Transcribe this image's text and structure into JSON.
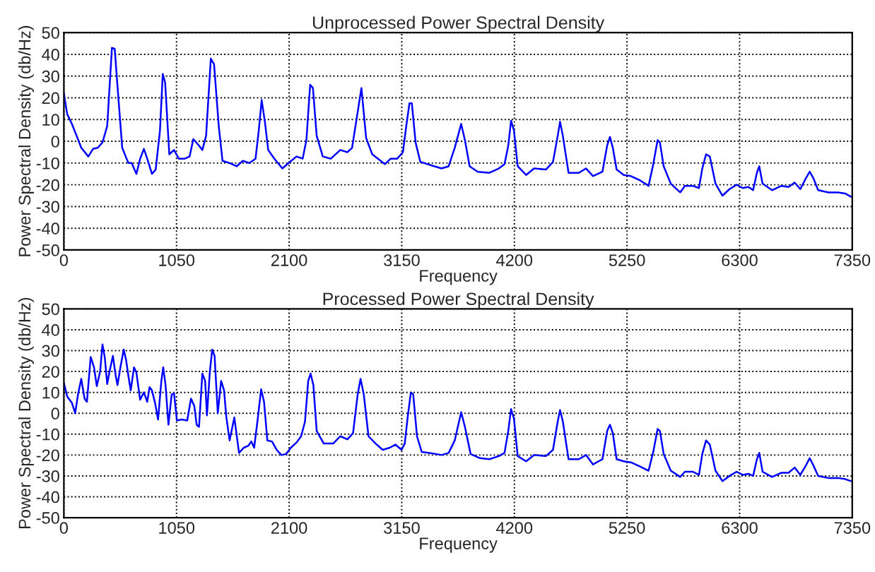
{
  "chart_data": [
    {
      "type": "line",
      "title": "Unprocessed Power Spectral Density",
      "xlabel": "Frequency",
      "ylabel": "Power Spectral Density (db/Hz)",
      "xlim": [
        0,
        7350
      ],
      "xticks": [
        0,
        1050,
        2100,
        3150,
        4200,
        5250,
        6300,
        7350
      ],
      "ylim": [
        -50,
        50
      ],
      "yticks": [
        -50,
        -40,
        -30,
        -20,
        -10,
        0,
        10,
        20,
        30,
        40,
        50
      ],
      "grid": true,
      "line_style": "solid",
      "marker": "none",
      "x": [
        0,
        31,
        75,
        119,
        162,
        228,
        272,
        316,
        360,
        404,
        448,
        474,
        505,
        544,
        601,
        632,
        676,
        711,
        746,
        777,
        821,
        856,
        896,
        922,
        944,
        983,
        1027,
        1071,
        1128,
        1172,
        1207,
        1260,
        1291,
        1326,
        1370,
        1400,
        1444,
        1479,
        1545,
        1611,
        1668,
        1730,
        1787,
        1817,
        1844,
        1874,
        1905,
        1962,
        2037,
        2107,
        2169,
        2226,
        2261,
        2296,
        2322,
        2357,
        2414,
        2489,
        2577,
        2643,
        2687,
        2744,
        2774,
        2818,
        2875,
        2928,
        2994,
        3047,
        3108,
        3161,
        3192,
        3222,
        3244,
        3279,
        3323,
        3389,
        3455,
        3521,
        3587,
        3644,
        3704,
        3739,
        3783,
        3858,
        3967,
        4055,
        4108,
        4143,
        4169,
        4196,
        4231,
        4310,
        4384,
        4494,
        4560,
        4604,
        4626,
        4652,
        4705,
        4801,
        4868,
        4933,
        5021,
        5065,
        5091,
        5118,
        5153,
        5219,
        5285,
        5372,
        5451,
        5495,
        5535,
        5557,
        5592,
        5658,
        5746,
        5790,
        5864,
        5921,
        5952,
        5987,
        6022,
        6075,
        6140,
        6206,
        6272,
        6329,
        6382,
        6426,
        6461,
        6483,
        6514,
        6602,
        6690,
        6756,
        6813,
        6866,
        6918,
        6953,
        6988,
        7032,
        7129,
        7216,
        7282,
        7339
      ],
      "series": [
        {
          "color": "#0000ff",
          "values": [
            22,
            12.5,
            8,
            2.5,
            -3,
            -7,
            -3.5,
            -3,
            -0.5,
            7,
            43,
            42.5,
            22,
            -3,
            -10,
            -10,
            -15,
            -8,
            -3.5,
            -8,
            -15,
            -13,
            5,
            31,
            27,
            -6,
            -4,
            -8,
            -8,
            -7,
            1,
            -2,
            -4,
            2.5,
            38,
            35.5,
            7,
            -9,
            -10,
            -11.5,
            -9,
            -10,
            -8,
            5,
            19,
            9,
            -4,
            -8,
            -12.5,
            -9.5,
            -7,
            -8,
            0.5,
            26,
            24.5,
            2.5,
            -7,
            -8,
            -4,
            -5,
            -3,
            15,
            24.5,
            1.5,
            -6,
            -8,
            -10.5,
            -8,
            -8,
            -5,
            7,
            17.5,
            17.5,
            -0.5,
            -9.5,
            -10.5,
            -11.5,
            -12.5,
            -11.5,
            -3,
            8,
            0.5,
            -11.5,
            -14,
            -14.5,
            -12.5,
            -10.5,
            -2,
            9.5,
            5,
            -11.5,
            -15.5,
            -12.5,
            -13,
            -9.5,
            2.5,
            9,
            2.5,
            -14.5,
            -14.5,
            -12.5,
            -16,
            -14,
            -2,
            2,
            -3,
            -13,
            -15.5,
            -16,
            -18,
            -20.5,
            -10.5,
            0.5,
            -0.5,
            -11.5,
            -19.5,
            -23.5,
            -20.5,
            -20.5,
            -21.5,
            -12.5,
            -6,
            -7,
            -19.5,
            -25,
            -22,
            -20,
            -21.5,
            -21,
            -22.5,
            -14.5,
            -11.5,
            -19.5,
            -22.5,
            -20.5,
            -21,
            -19,
            -22,
            -17,
            -14,
            -17,
            -22.5,
            -23.5,
            -23.5,
            -24,
            -25.5
          ]
        }
      ]
    },
    {
      "type": "line",
      "title": "Processed Power Spectral Density",
      "xlabel": "Frequency",
      "ylabel": "Power Spectral Density (db/Hz)",
      "xlim": [
        0,
        7350
      ],
      "xticks": [
        0,
        1050,
        2100,
        3150,
        4200,
        5250,
        6300,
        7350
      ],
      "ylim": [
        -50,
        50
      ],
      "yticks": [
        -50,
        -40,
        -30,
        -20,
        -10,
        0,
        10,
        20,
        30,
        40,
        50
      ],
      "grid": true,
      "line_style": "solid",
      "marker": "none",
      "x": [
        0,
        31,
        75,
        105,
        132,
        162,
        193,
        215,
        250,
        281,
        307,
        338,
        360,
        382,
        404,
        426,
        457,
        483,
        500,
        527,
        558,
        580,
        601,
        623,
        654,
        676,
        711,
        746,
        777,
        799,
        821,
        852,
        878,
        909,
        926,
        948,
        975,
        1005,
        1027,
        1054,
        1098,
        1150,
        1185,
        1216,
        1238,
        1260,
        1291,
        1317,
        1334,
        1361,
        1383,
        1405,
        1435,
        1466,
        1493,
        1515,
        1545,
        1589,
        1633,
        1677,
        1721,
        1747,
        1774,
        1809,
        1839,
        1866,
        1897,
        1940,
        1984,
        2028,
        2072,
        2116,
        2169,
        2212,
        2248,
        2278,
        2300,
        2326,
        2357,
        2423,
        2511,
        2577,
        2643,
        2696,
        2739,
        2766,
        2796,
        2840,
        2906,
        2972,
        3038,
        3091,
        3148,
        3178,
        3205,
        3235,
        3257,
        3292,
        3336,
        3411,
        3468,
        3521,
        3587,
        3644,
        3704,
        3739,
        3792,
        3880,
        3967,
        4055,
        4108,
        4143,
        4169,
        4196,
        4231,
        4310,
        4384,
        4494,
        4560,
        4604,
        4626,
        4652,
        4705,
        4801,
        4868,
        4933,
        5021,
        5065,
        5091,
        5118,
        5153,
        5219,
        5285,
        5372,
        5451,
        5495,
        5535,
        5557,
        5592,
        5658,
        5746,
        5790,
        5864,
        5921,
        5952,
        5987,
        6022,
        6075,
        6140,
        6206,
        6272,
        6329,
        6382,
        6426,
        6461,
        6483,
        6514,
        6602,
        6690,
        6756,
        6813,
        6866,
        6918,
        6953,
        6988,
        7032,
        7129,
        7216,
        7282,
        7339
      ],
      "series": [
        {
          "color": "#0000ff",
          "values": [
            14.5,
            8,
            5,
            0,
            9,
            16.5,
            7,
            5.5,
            27,
            22,
            13,
            20,
            33,
            26.5,
            14,
            20,
            27.5,
            18,
            13.5,
            22,
            30.5,
            25.5,
            18,
            11,
            22,
            19.5,
            6.5,
            10,
            5.5,
            12.5,
            11,
            4.5,
            -3,
            15.5,
            22,
            13.5,
            -5.5,
            9,
            9.5,
            -3.5,
            -3,
            -3.5,
            7,
            3.5,
            -5.5,
            -6.5,
            19,
            15.5,
            -1,
            20,
            30.5,
            27.5,
            0,
            15.5,
            11,
            -2,
            -13,
            -2,
            -19,
            -16.5,
            -15.5,
            -13.5,
            -16.5,
            -2,
            11.5,
            5.5,
            -13,
            -13.5,
            -17.5,
            -20,
            -19.5,
            -16.5,
            -14,
            -11,
            -4,
            15.5,
            19,
            13.5,
            -8.5,
            -14.5,
            -14.5,
            -11,
            -12.5,
            -9.5,
            9,
            16.5,
            9,
            -11,
            -14.5,
            -17.5,
            -16.5,
            -15,
            -17.5,
            -14.5,
            -2,
            10,
            9,
            -11,
            -18.5,
            -19,
            -19.5,
            -20,
            -19,
            -13,
            0.5,
            -6.5,
            -19.5,
            -21.5,
            -22,
            -20.5,
            -19,
            -8.5,
            2,
            -2.5,
            -20.5,
            -23,
            -20,
            -20.5,
            -17.5,
            -4,
            1.5,
            -4,
            -22,
            -22,
            -20,
            -24.5,
            -22,
            -8.5,
            -5.5,
            -9.5,
            -22,
            -23,
            -23.5,
            -25.5,
            -27.5,
            -18.5,
            -7.5,
            -8.5,
            -19.5,
            -27.5,
            -30.5,
            -28,
            -28,
            -29.5,
            -19.5,
            -13,
            -15,
            -27.5,
            -32.5,
            -30,
            -28,
            -29.5,
            -29,
            -30,
            -22,
            -19,
            -28,
            -30.5,
            -28.5,
            -28.5,
            -26,
            -29.5,
            -25,
            -21.5,
            -25,
            -30,
            -31,
            -31,
            -31.5,
            -32.5
          ]
        }
      ]
    }
  ]
}
